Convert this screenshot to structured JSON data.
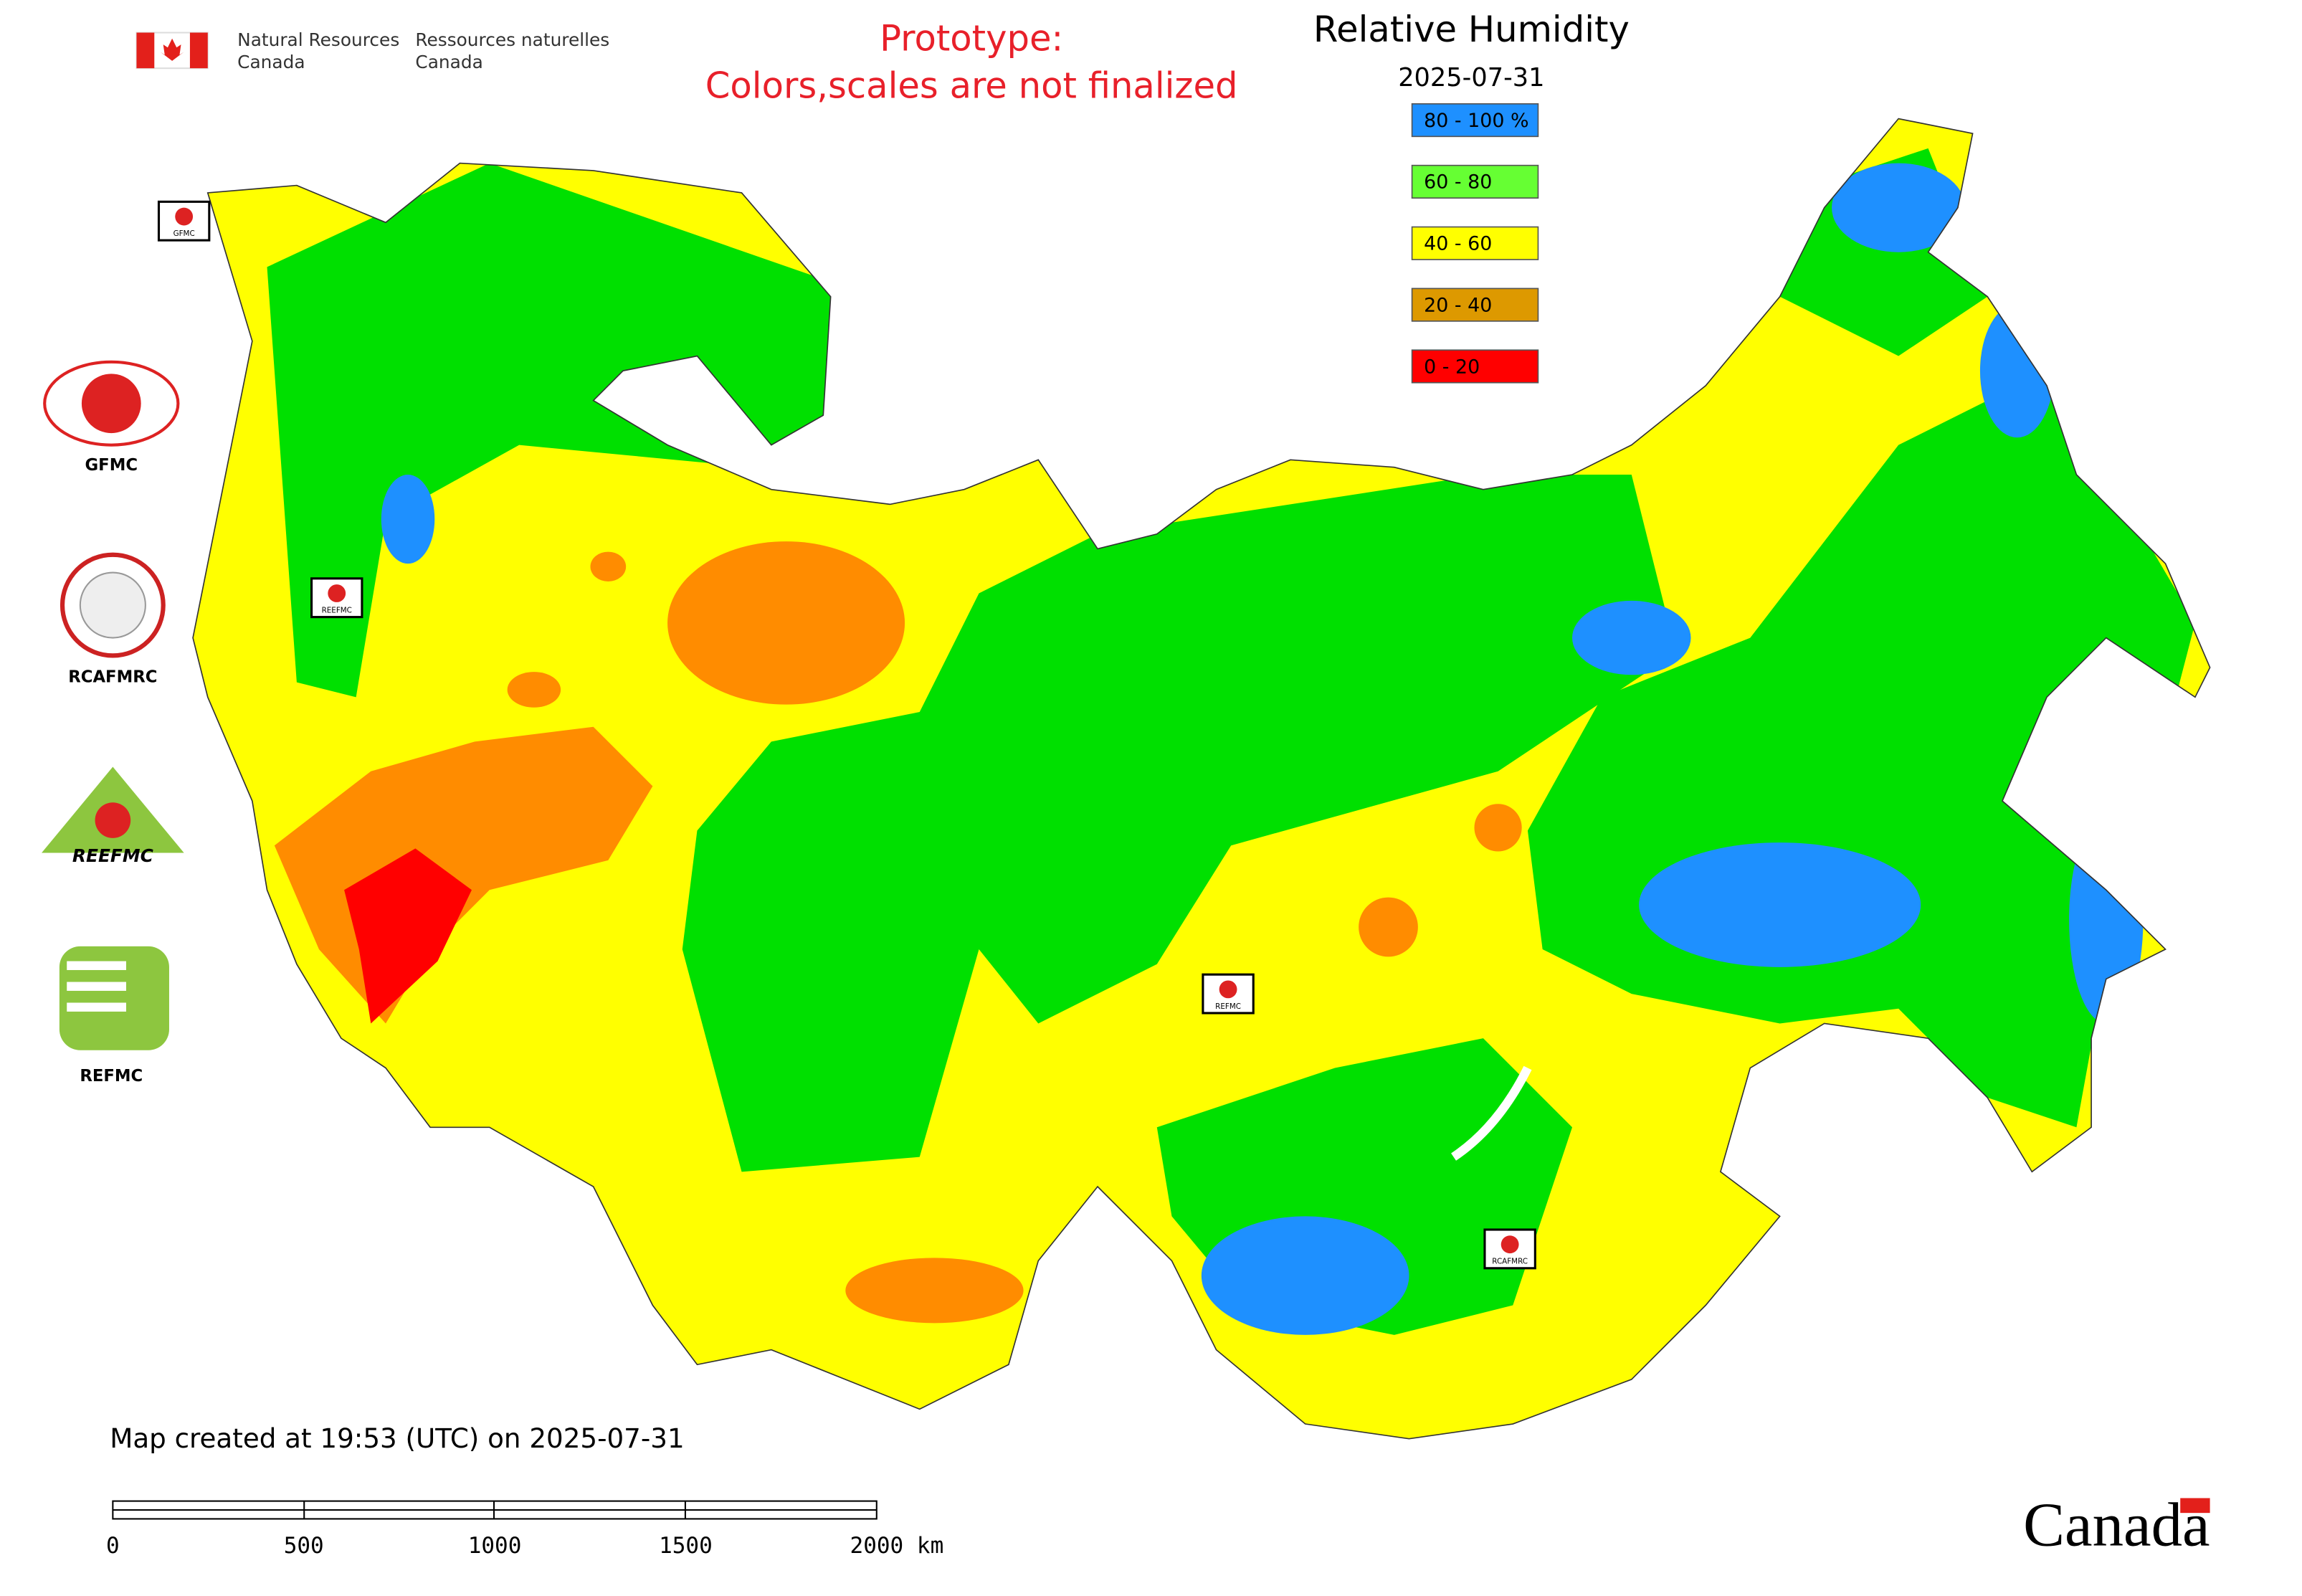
{
  "header": {
    "agency_en": [
      "Natural Resources",
      "Canada"
    ],
    "agency_fr": [
      "Ressources naturelles",
      "Canada"
    ],
    "notice": [
      "Prototype:",
      "Colors,scales are not finalized"
    ]
  },
  "title": "Relative Humidity",
  "date": "2025-07-31",
  "legend": [
    {
      "label": "80 - 100 %",
      "color": "#1e90ff"
    },
    {
      "label": "60 - 80",
      "color": "#66ff33"
    },
    {
      "label": "40 - 60",
      "color": "#ffff00"
    },
    {
      "label": "20 - 40",
      "color": "#dd9900"
    },
    {
      "label": "0 - 20",
      "color": "#ff0000"
    }
  ],
  "logos": [
    "GFMC",
    "RCAFMRC",
    "REEFMC",
    "REFMC"
  ],
  "map_markers": [
    "GFMC",
    "REEFMC",
    "REFMC",
    "RCAFMRC"
  ],
  "footer": {
    "created": "Map created at 19:53 (UTC) on 2025-07-31",
    "scale_labels": [
      "0",
      "500",
      "1000",
      "1500",
      "2000 km"
    ],
    "wordmark": "Canada"
  }
}
